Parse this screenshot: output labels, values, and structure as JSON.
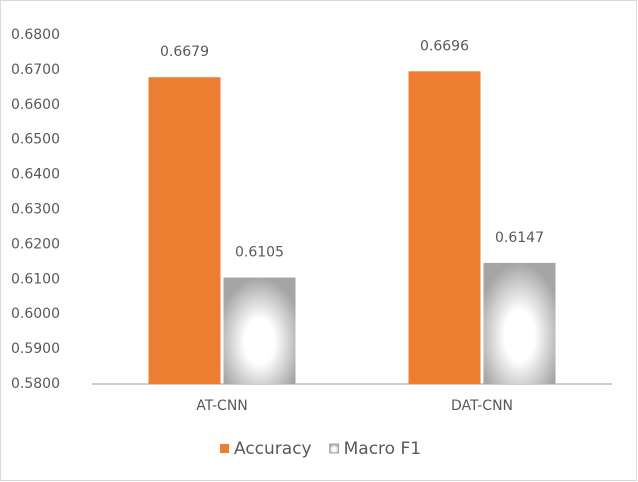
{
  "chart_data": {
    "type": "bar",
    "categories": [
      "AT-CNN",
      "DAT-CNN"
    ],
    "series": [
      {
        "name": "Accuracy",
        "color": "#ed7d31",
        "values": [
          0.6679,
          0.6696
        ]
      },
      {
        "name": "Macro F1",
        "color": "#a5a5a5",
        "values": [
          0.6105,
          0.6147
        ]
      }
    ],
    "ylim": [
      0.58,
      0.68
    ],
    "yticks": [
      {
        "value": 0.58,
        "label": "0.5800"
      },
      {
        "value": 0.59,
        "label": "0.5900"
      },
      {
        "value": 0.6,
        "label": "0.6000"
      },
      {
        "value": 0.61,
        "label": "0.6100"
      },
      {
        "value": 0.62,
        "label": "0.6200"
      },
      {
        "value": 0.63,
        "label": "0.6300"
      },
      {
        "value": 0.64,
        "label": "0.6400"
      },
      {
        "value": 0.65,
        "label": "0.6500"
      },
      {
        "value": 0.66,
        "label": "0.6600"
      },
      {
        "value": 0.67,
        "label": "0.6700"
      },
      {
        "value": 0.68,
        "label": "0.6800"
      }
    ],
    "grid": false,
    "legend": "bottom"
  }
}
